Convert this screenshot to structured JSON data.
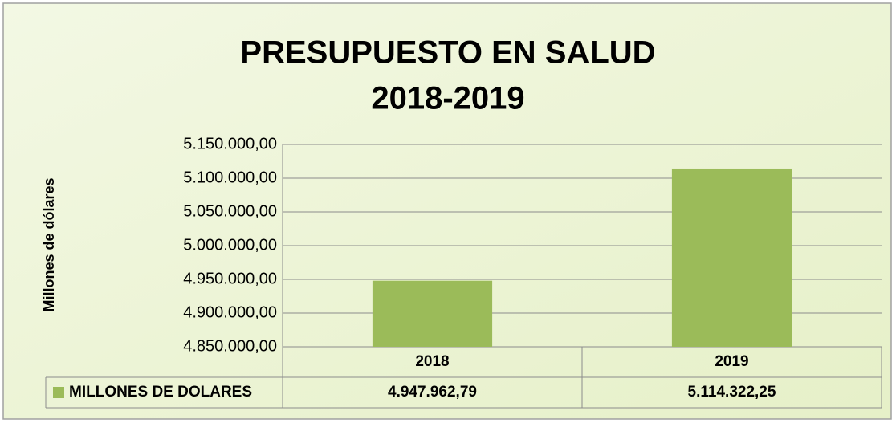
{
  "chart_data": {
    "type": "bar",
    "title": [
      "PRESUPUESTO EN SALUD",
      "2018-2019"
    ],
    "y_label": "Millones de dólares",
    "categories": [
      "2018",
      "2019"
    ],
    "series": [
      {
        "name": "MILLONES DE DOLARES",
        "color": "#9bbb59",
        "values": [
          4947962.79,
          5114322.25
        ],
        "value_labels": [
          "4.947.962,79",
          "5.114.322,25"
        ]
      }
    ],
    "ylim": [
      4850000,
      5150000
    ],
    "yticks": [
      {
        "value": 4850000,
        "label": "4.850.000,00"
      },
      {
        "value": 4900000,
        "label": "4.900.000,00"
      },
      {
        "value": 4950000,
        "label": "4.950.000,00"
      },
      {
        "value": 5000000,
        "label": "5.000.000,00"
      },
      {
        "value": 5050000,
        "label": "5.050.000,00"
      },
      {
        "value": 5100000,
        "label": "5.100.000,00"
      },
      {
        "value": 5150000,
        "label": "5.150.000,00"
      }
    ],
    "grid": true,
    "data_table": true
  }
}
